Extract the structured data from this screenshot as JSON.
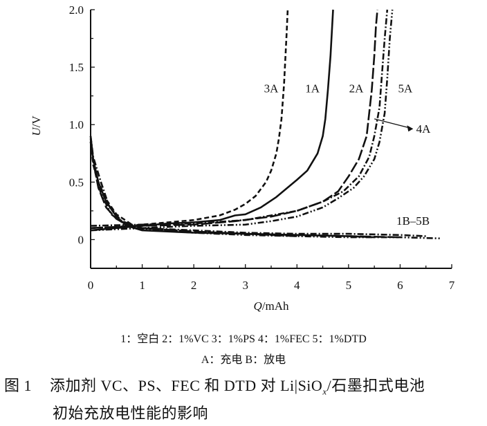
{
  "chart_data": {
    "type": "line",
    "xlabel": "Q/mAh",
    "xlabel_italic": "Q",
    "xlabel_unit": "/mAh",
    "ylabel": "U/V",
    "ylabel_italic": "U",
    "ylabel_unit": "/V",
    "xlim": [
      0,
      7
    ],
    "ylim": [
      -0.25,
      2.0
    ],
    "xticks": [
      "0",
      "1",
      "2",
      "3",
      "4",
      "5",
      "6",
      "7"
    ],
    "xtick_values": [
      0,
      1,
      2,
      3,
      4,
      5,
      6,
      7
    ],
    "yticks": [
      "0",
      "0.5",
      "1.0",
      "1.5",
      "2.0"
    ],
    "ytick_values": [
      0,
      0.5,
      1.0,
      1.5,
      2.0
    ],
    "grid": false,
    "series": [
      {
        "name": "1A",
        "style": "solid",
        "x": [
          0,
          0.5,
          1,
          1.5,
          2,
          2.5,
          2.8,
          3,
          3.3,
          3.6,
          4,
          4.2,
          4.4,
          4.5,
          4.55,
          4.6,
          4.65,
          4.7
        ],
        "y": [
          0.08,
          0.1,
          0.12,
          0.14,
          0.15,
          0.17,
          0.21,
          0.22,
          0.28,
          0.37,
          0.52,
          0.6,
          0.75,
          0.9,
          1.05,
          1.3,
          1.6,
          2.0
        ]
      },
      {
        "name": "3A",
        "style": "dash",
        "x": [
          0,
          0.5,
          1,
          1.5,
          2,
          2.5,
          2.8,
          3,
          3.2,
          3.4,
          3.5,
          3.6,
          3.65,
          3.7,
          3.75,
          3.8,
          3.82
        ],
        "y": [
          0.1,
          0.11,
          0.13,
          0.15,
          0.17,
          0.21,
          0.26,
          0.31,
          0.38,
          0.5,
          0.6,
          0.75,
          0.88,
          1.05,
          1.35,
          1.8,
          2.0
        ]
      },
      {
        "name": "2A",
        "style": "longdash",
        "x": [
          0,
          1,
          2,
          2.8,
          3.5,
          4,
          4.5,
          4.8,
          5,
          5.2,
          5.35,
          5.4,
          5.45,
          5.5,
          5.53,
          5.56
        ],
        "y": [
          0.1,
          0.12,
          0.13,
          0.16,
          0.2,
          0.25,
          0.33,
          0.42,
          0.55,
          0.7,
          0.9,
          1.1,
          1.3,
          1.6,
          1.85,
          2.0
        ]
      },
      {
        "name": "4A",
        "style": "dashdot",
        "x": [
          0,
          1,
          2,
          3,
          3.5,
          4,
          4.5,
          4.9,
          5.2,
          5.4,
          5.5,
          5.6,
          5.65,
          5.7,
          5.75
        ],
        "y": [
          0.12,
          0.13,
          0.14,
          0.17,
          0.21,
          0.25,
          0.33,
          0.42,
          0.55,
          0.72,
          0.9,
          1.15,
          1.45,
          1.75,
          2.0
        ]
      },
      {
        "name": "5A",
        "style": "dashdotdot",
        "x": [
          0,
          1,
          2,
          3,
          3.5,
          4,
          4.5,
          4.8,
          5.1,
          5.3,
          5.5,
          5.6,
          5.7,
          5.75,
          5.8,
          5.85
        ],
        "y": [
          0.08,
          0.1,
          0.12,
          0.13,
          0.16,
          0.2,
          0.28,
          0.36,
          0.45,
          0.55,
          0.7,
          0.85,
          1.1,
          1.4,
          1.75,
          2.0
        ]
      },
      {
        "name": "1B",
        "style": "solid",
        "x": [
          0,
          0.05,
          0.15,
          0.3,
          0.5,
          0.7,
          1,
          2,
          3,
          4,
          5,
          5.5
        ],
        "y": [
          0.9,
          0.7,
          0.5,
          0.33,
          0.2,
          0.12,
          0.08,
          0.06,
          0.05,
          0.04,
          0.03,
          0.02
        ]
      },
      {
        "name": "2B",
        "style": "longdash",
        "x": [
          0,
          0.05,
          0.15,
          0.3,
          0.5,
          0.7,
          1,
          2,
          3,
          4,
          5,
          6
        ],
        "y": [
          0.88,
          0.68,
          0.45,
          0.28,
          0.18,
          0.13,
          0.1,
          0.07,
          0.05,
          0.04,
          0.03,
          0.02
        ]
      },
      {
        "name": "3B",
        "style": "dash",
        "x": [
          0,
          0.05,
          0.15,
          0.3,
          0.5,
          0.8,
          1,
          2,
          3,
          4
        ],
        "y": [
          0.85,
          0.65,
          0.5,
          0.35,
          0.22,
          0.13,
          0.1,
          0.07,
          0.05,
          0.03
        ]
      },
      {
        "name": "4B",
        "style": "dashdot",
        "x": [
          0,
          0.05,
          0.2,
          0.35,
          0.6,
          1,
          2,
          3,
          4,
          5,
          6,
          6.5
        ],
        "y": [
          0.9,
          0.72,
          0.5,
          0.3,
          0.16,
          0.1,
          0.08,
          0.06,
          0.05,
          0.05,
          0.04,
          0.03
        ]
      },
      {
        "name": "5B",
        "style": "dashdotdot",
        "x": [
          0,
          0.08,
          0.2,
          0.4,
          0.7,
          1,
          2,
          3,
          4,
          5,
          6,
          6.8
        ],
        "y": [
          0.85,
          0.6,
          0.4,
          0.22,
          0.12,
          0.09,
          0.06,
          0.04,
          0.03,
          0.02,
          0.02,
          0.01
        ]
      }
    ],
    "annotations": [
      {
        "text": "3A",
        "x": 3.5,
        "y": 1.28
      },
      {
        "text": "1A",
        "x": 4.3,
        "y": 1.28
      },
      {
        "text": "2A",
        "x": 5.15,
        "y": 1.28
      },
      {
        "text": "5A",
        "x": 6.1,
        "y": 1.28
      },
      {
        "text": "4A",
        "x": 6.45,
        "y": 0.93,
        "arrow_from": [
          5.5,
          1.05
        ],
        "arrow_to": [
          6.2,
          0.97
        ]
      },
      {
        "text": "1B–5B",
        "x": 6.25,
        "y": 0.13
      }
    ]
  },
  "legend": {
    "line1": "1：空白  2：1%VC  3：1%PS  4：1%FEC  5：1%DTD",
    "line2": "A：充电   B：放电"
  },
  "caption": {
    "label": "图 1",
    "text1": "添加剂 VC、PS、FEC 和 DTD 对 Li|SiO",
    "sub": "x",
    "text2": "/石墨扣式电池",
    "line2": "初始充放电性能的影响"
  }
}
